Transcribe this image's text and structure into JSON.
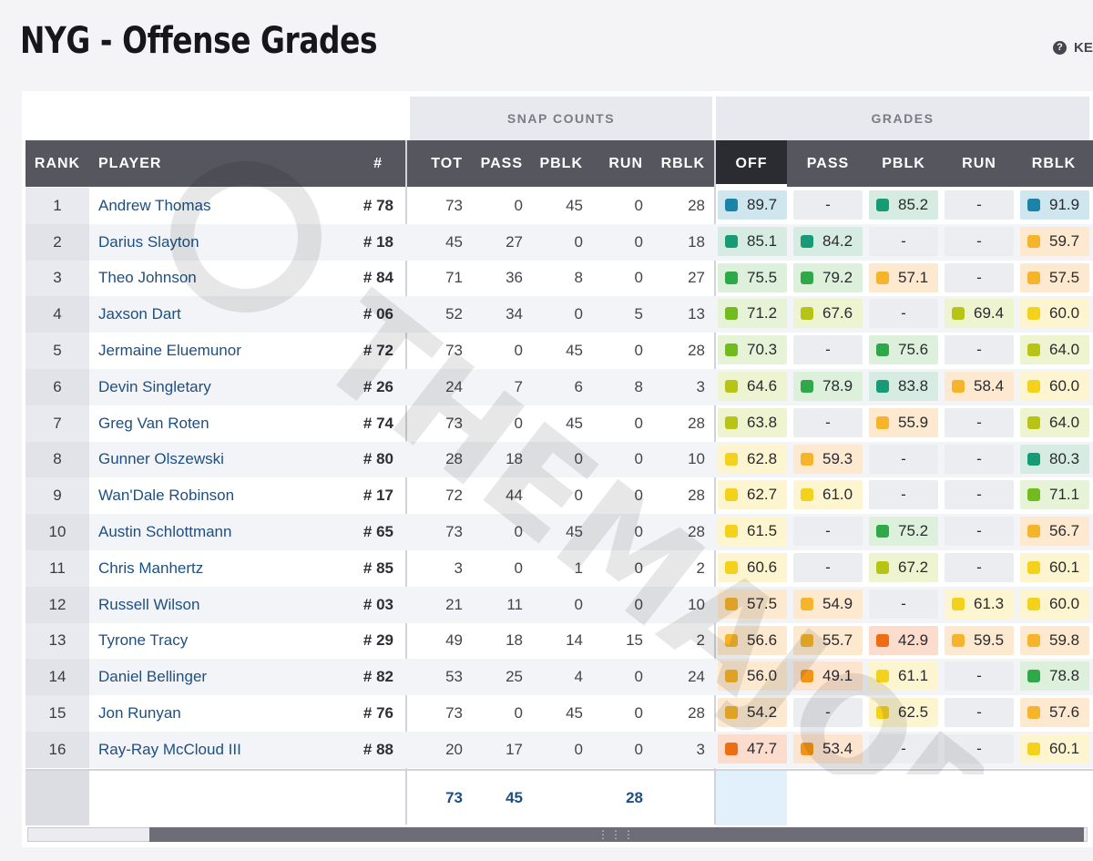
{
  "title": "NYG - Offense Grades",
  "key_label": "KE",
  "groups": {
    "snap": "SNAP COUNTS",
    "grades": "GRADES"
  },
  "headers": {
    "rank": "RANK",
    "player": "PLAYER",
    "num": "#",
    "tot": "TOT",
    "pass": "PASS",
    "pblk": "PBLK",
    "run": "RUN",
    "rblk": "RBLK",
    "g_off": "OFF",
    "g_pass": "PASS",
    "g_pblk": "PBLK",
    "g_run": "RUN",
    "g_rblk": "RBLK"
  },
  "rows": [
    {
      "rank": "1",
      "name": "Andrew Thomas",
      "num": "# 78",
      "tot": "73",
      "pass": "0",
      "pblk": "45",
      "run": "0",
      "rblk": "28",
      "g_off": "89.7",
      "g_pass": "-",
      "g_pblk": "85.2",
      "g_run": "-",
      "g_rblk": "91.9"
    },
    {
      "rank": "2",
      "name": "Darius Slayton",
      "num": "# 18",
      "tot": "45",
      "pass": "27",
      "pblk": "0",
      "run": "0",
      "rblk": "18",
      "g_off": "85.1",
      "g_pass": "84.2",
      "g_pblk": "-",
      "g_run": "-",
      "g_rblk": "59.7"
    },
    {
      "rank": "3",
      "name": "Theo Johnson",
      "num": "# 84",
      "tot": "71",
      "pass": "36",
      "pblk": "8",
      "run": "0",
      "rblk": "27",
      "g_off": "75.5",
      "g_pass": "79.2",
      "g_pblk": "57.1",
      "g_run": "-",
      "g_rblk": "57.5"
    },
    {
      "rank": "4",
      "name": "Jaxson Dart",
      "num": "# 06",
      "tot": "52",
      "pass": "34",
      "pblk": "0",
      "run": "5",
      "rblk": "13",
      "g_off": "71.2",
      "g_pass": "67.6",
      "g_pblk": "-",
      "g_run": "69.4",
      "g_rblk": "60.0"
    },
    {
      "rank": "5",
      "name": "Jermaine Eluemunor",
      "num": "# 72",
      "tot": "73",
      "pass": "0",
      "pblk": "45",
      "run": "0",
      "rblk": "28",
      "g_off": "70.3",
      "g_pass": "-",
      "g_pblk": "75.6",
      "g_run": "-",
      "g_rblk": "64.0"
    },
    {
      "rank": "6",
      "name": "Devin Singletary",
      "num": "# 26",
      "tot": "24",
      "pass": "7",
      "pblk": "6",
      "run": "8",
      "rblk": "3",
      "g_off": "64.6",
      "g_pass": "78.9",
      "g_pblk": "83.8",
      "g_run": "58.4",
      "g_rblk": "60.0"
    },
    {
      "rank": "7",
      "name": "Greg Van Roten",
      "num": "# 74",
      "tot": "73",
      "pass": "0",
      "pblk": "45",
      "run": "0",
      "rblk": "28",
      "g_off": "63.8",
      "g_pass": "-",
      "g_pblk": "55.9",
      "g_run": "-",
      "g_rblk": "64.0"
    },
    {
      "rank": "8",
      "name": "Gunner Olszewski",
      "num": "# 80",
      "tot": "28",
      "pass": "18",
      "pblk": "0",
      "run": "0",
      "rblk": "10",
      "g_off": "62.8",
      "g_pass": "59.3",
      "g_pblk": "-",
      "g_run": "-",
      "g_rblk": "80.3"
    },
    {
      "rank": "9",
      "name": "Wan'Dale Robinson",
      "num": "# 17",
      "tot": "72",
      "pass": "44",
      "pblk": "0",
      "run": "0",
      "rblk": "28",
      "g_off": "62.7",
      "g_pass": "61.0",
      "g_pblk": "-",
      "g_run": "-",
      "g_rblk": "71.1"
    },
    {
      "rank": "10",
      "name": "Austin Schlottmann",
      "num": "# 65",
      "tot": "73",
      "pass": "0",
      "pblk": "45",
      "run": "0",
      "rblk": "28",
      "g_off": "61.5",
      "g_pass": "-",
      "g_pblk": "75.2",
      "g_run": "-",
      "g_rblk": "56.7"
    },
    {
      "rank": "11",
      "name": "Chris Manhertz",
      "num": "# 85",
      "tot": "3",
      "pass": "0",
      "pblk": "1",
      "run": "0",
      "rblk": "2",
      "g_off": "60.6",
      "g_pass": "-",
      "g_pblk": "67.2",
      "g_run": "-",
      "g_rblk": "60.1"
    },
    {
      "rank": "12",
      "name": "Russell Wilson",
      "num": "# 03",
      "tot": "21",
      "pass": "11",
      "pblk": "0",
      "run": "0",
      "rblk": "10",
      "g_off": "57.5",
      "g_pass": "54.9",
      "g_pblk": "-",
      "g_run": "61.3",
      "g_rblk": "60.0"
    },
    {
      "rank": "13",
      "name": "Tyrone Tracy",
      "num": "# 29",
      "tot": "49",
      "pass": "18",
      "pblk": "14",
      "run": "15",
      "rblk": "2",
      "g_off": "56.6",
      "g_pass": "55.7",
      "g_pblk": "42.9",
      "g_run": "59.5",
      "g_rblk": "59.8"
    },
    {
      "rank": "14",
      "name": "Daniel Bellinger",
      "num": "# 82",
      "tot": "53",
      "pass": "25",
      "pblk": "4",
      "run": "0",
      "rblk": "24",
      "g_off": "56.0",
      "g_pass": "49.1",
      "g_pblk": "61.1",
      "g_run": "-",
      "g_rblk": "78.8"
    },
    {
      "rank": "15",
      "name": "Jon Runyan",
      "num": "# 76",
      "tot": "73",
      "pass": "0",
      "pblk": "45",
      "run": "0",
      "rblk": "28",
      "g_off": "54.2",
      "g_pass": "-",
      "g_pblk": "62.5",
      "g_run": "-",
      "g_rblk": "57.6"
    },
    {
      "rank": "16",
      "name": "Ray-Ray McCloud III",
      "num": "# 88",
      "tot": "20",
      "pass": "17",
      "pblk": "0",
      "run": "0",
      "rblk": "3",
      "g_off": "47.7",
      "g_pass": "53.4",
      "g_pblk": "-",
      "g_run": "-",
      "g_rblk": "60.1"
    }
  ],
  "totals": {
    "tot": "73",
    "pass": "45",
    "run": "28"
  },
  "watermark_text": "@THEMAJORGIANT"
}
